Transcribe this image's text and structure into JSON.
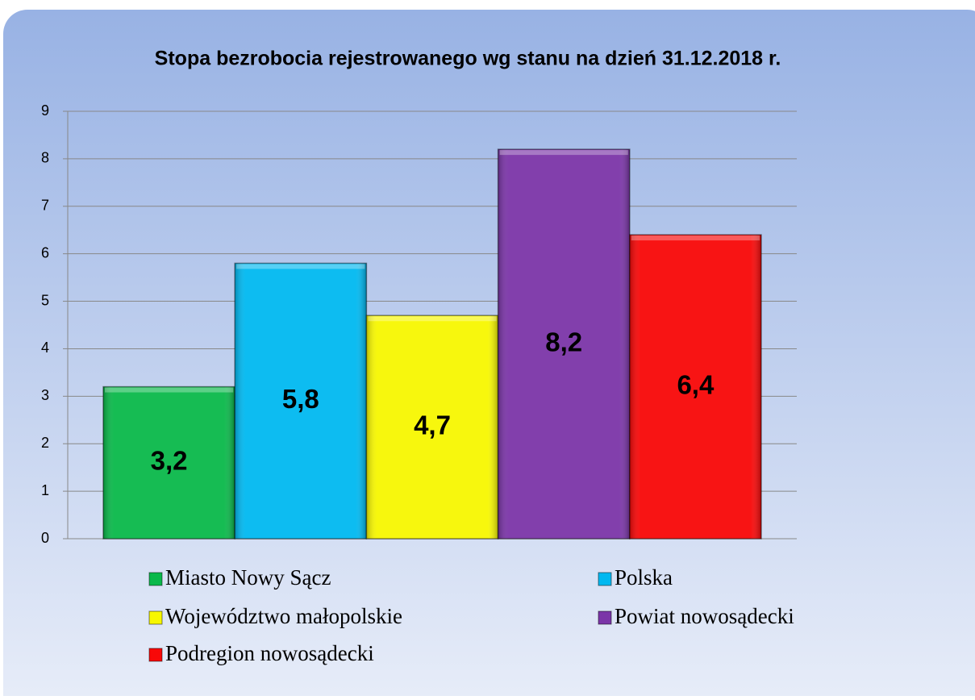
{
  "chart_data": {
    "type": "bar",
    "title": "Stopa bezrobocia rejestrowanego wg stanu na dzień  31.12.2018 r.",
    "series": [
      {
        "name": "Miasto Nowy Sącz",
        "color": "#0ab84a",
        "values": [
          3.2
        ],
        "value_labels": [
          "3,2"
        ]
      },
      {
        "name": "Polska",
        "color": "#00b8f0",
        "values": [
          5.8
        ],
        "value_labels": [
          "5,8"
        ]
      },
      {
        "name": "Województwo małopolskie",
        "color": "#f7f700",
        "values": [
          4.7
        ],
        "value_labels": [
          "4,7"
        ]
      },
      {
        "name": "Powiat nowosądecki",
        "color": "#7b35a8",
        "values": [
          8.2
        ],
        "value_labels": [
          "8,2"
        ]
      },
      {
        "name": "Podregion nowosądecki",
        "color": "#f80808",
        "values": [
          6.4
        ],
        "value_labels": [
          "6,4"
        ]
      }
    ],
    "ylim": [
      0,
      9
    ],
    "yticks": [
      0,
      1,
      2,
      3,
      4,
      5,
      6,
      7,
      8,
      9
    ],
    "grid": true
  }
}
